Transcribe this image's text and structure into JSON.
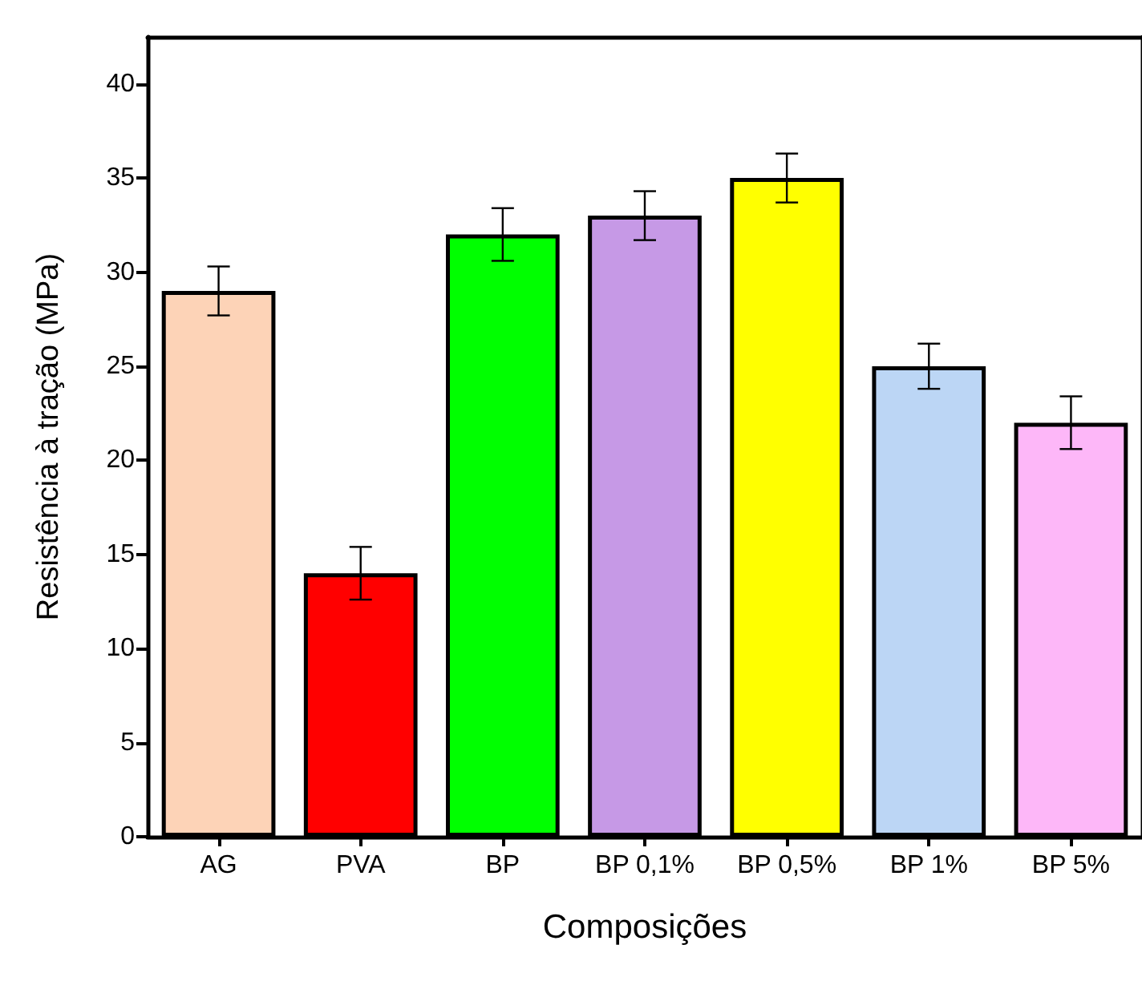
{
  "chart_data": {
    "type": "bar",
    "xlabel": "Composições",
    "ylabel": "Resistência à tração (MPa)",
    "categories": [
      "AG",
      "PVA",
      "BP",
      "BP 0,1%",
      "BP 0,5%",
      "BP 1%",
      "BP 5%"
    ],
    "values": [
      29,
      14,
      32,
      33,
      35,
      25,
      22
    ],
    "colors": [
      "#fdd3b7",
      "#ff0000",
      "#00ff00",
      "#c699e6",
      "#ffff00",
      "#bcd6f5",
      "#fdb7f8"
    ],
    "errors": [
      1.3,
      1.4,
      1.4,
      1.3,
      1.3,
      1.2,
      1.4
    ],
    "ylim": [
      0,
      42.5
    ],
    "yticks": [
      0,
      5,
      10,
      15,
      20,
      25,
      30,
      35,
      40
    ],
    "grid": false
  }
}
